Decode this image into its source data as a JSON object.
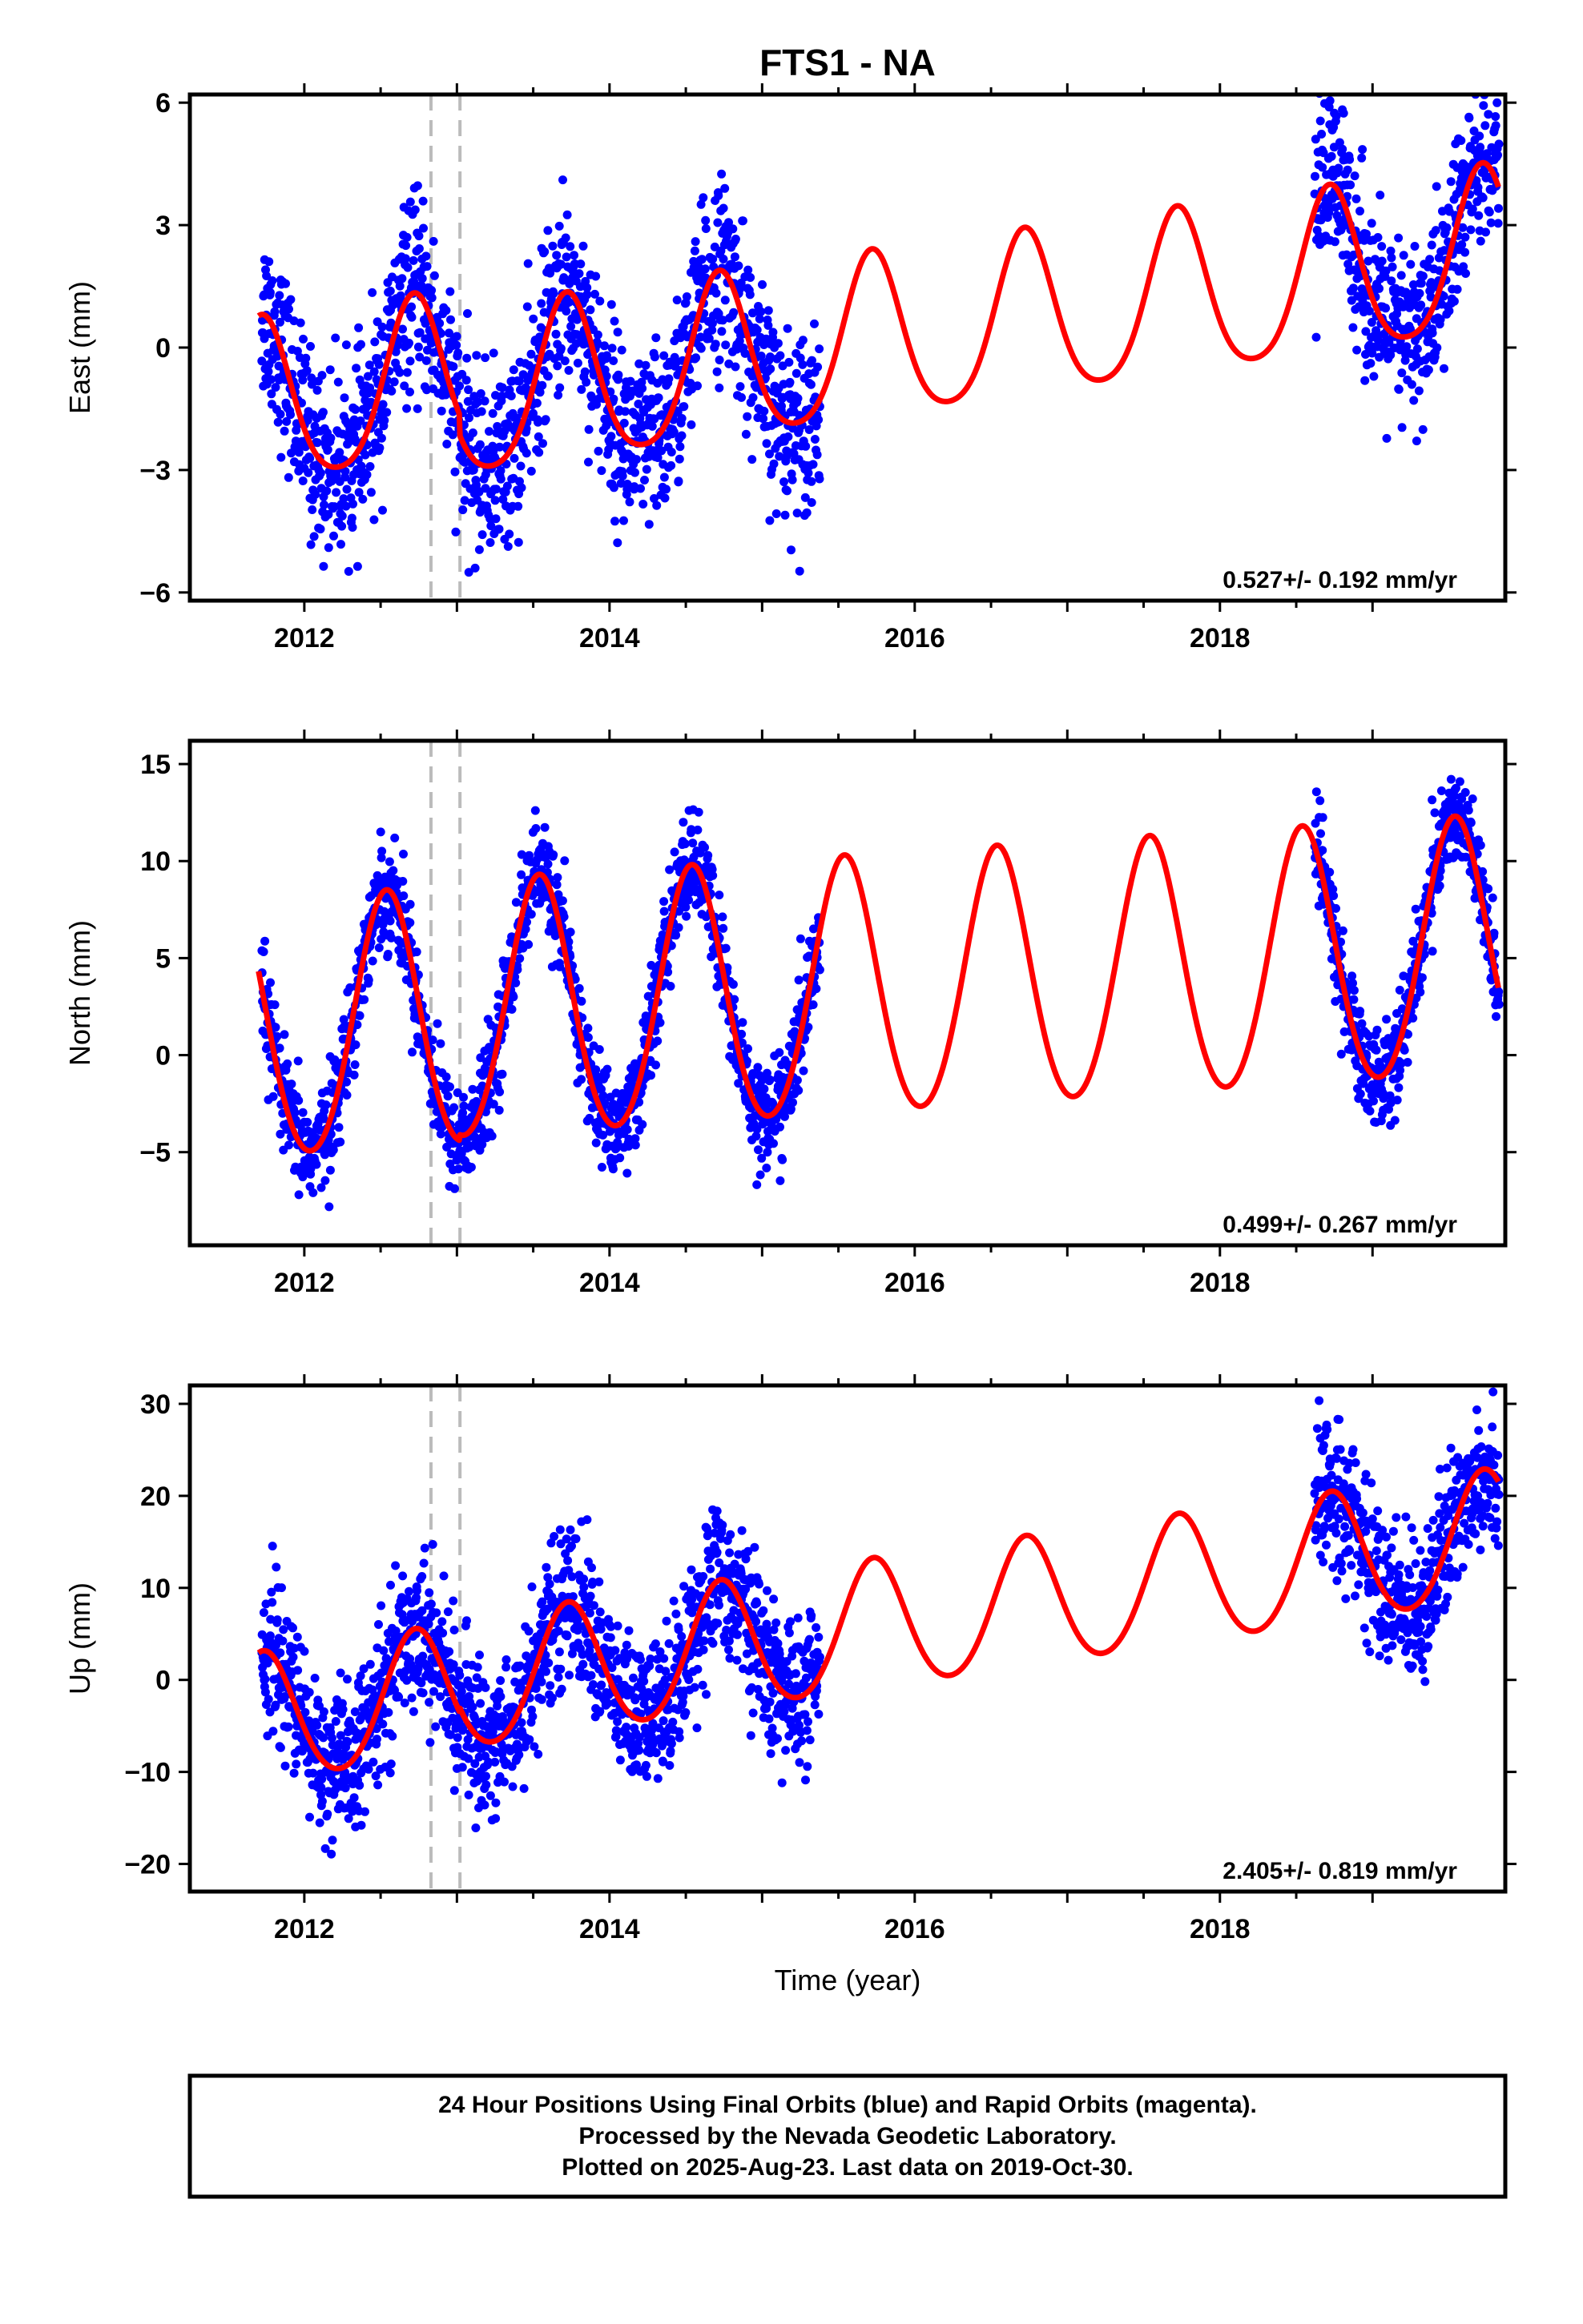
{
  "title": "FTS1 - NA",
  "x_axis_label": "Time (year)",
  "footer_lines": [
    "24 Hour Positions Using Final Orbits (blue) and Rapid Orbits (magenta).",
    "Processed by the Nevada Geodetic Laboratory.",
    "Plotted on 2025-Aug-23. Last data on 2019-Oct-30."
  ],
  "colors": {
    "observations": "#0000ff",
    "model": "#ff0000",
    "offsets": "#bbbbbb",
    "frame": "#000000"
  },
  "chart_data": [
    {
      "type": "scatter",
      "name": "east",
      "ylabel": "East (mm)",
      "rate_label": "0.527+/- 0.192 mm/yr",
      "xlim": [
        2011.25,
        2019.87
      ],
      "ylim": [
        -6.2,
        6.2
      ],
      "xticks": [
        2012,
        2014,
        2016,
        2018
      ],
      "yticks": [
        -6,
        -3,
        0,
        3,
        6
      ],
      "ytick_labels": [
        "−6",
        "−3",
        "0",
        "3",
        "6"
      ],
      "offset_lines": [
        2012.83,
        2013.02
      ],
      "model_params": {
        "trend_mm_per_yr": 0.527,
        "intercept": -1.5,
        "annual_amp": 2.0,
        "annual_peak": 2012.72,
        "semiannual_amp": 0.3,
        "step_at": 2013.02,
        "step": -0.5
      },
      "observation_spans": [
        [
          2011.72,
          2015.38
        ],
        [
          2018.62,
          2019.83
        ]
      ],
      "model_curve": [
        [
          2011.7,
          0.3
        ],
        [
          2012.0,
          0.0
        ],
        [
          2012.3,
          -2.6
        ],
        [
          2012.72,
          1.0
        ],
        [
          2013.0,
          -0.1
        ],
        [
          2013.3,
          -2.6
        ],
        [
          2013.72,
          1.0
        ],
        [
          2014.3,
          -2.0
        ],
        [
          2014.72,
          1.5
        ],
        [
          2015.3,
          -1.6
        ],
        [
          2015.72,
          2.1
        ],
        [
          2016.3,
          -1.0
        ],
        [
          2016.72,
          2.6
        ],
        [
          2017.3,
          -0.5
        ],
        [
          2017.72,
          3.1
        ],
        [
          2018.3,
          0.0
        ],
        [
          2018.72,
          3.6
        ],
        [
          2019.25,
          0.6
        ],
        [
          2019.75,
          4.1
        ]
      ],
      "obs_scatter_sd": 1.1,
      "obs_count": 2000
    },
    {
      "type": "scatter",
      "name": "north",
      "ylabel": "North (mm)",
      "rate_label": "0.499+/- 0.267 mm/yr",
      "xlim": [
        2011.25,
        2019.87
      ],
      "ylim": [
        -9.8,
        16.2
      ],
      "xticks": [
        2012,
        2014,
        2016,
        2018
      ],
      "yticks": [
        -5,
        0,
        5,
        10,
        15
      ],
      "ytick_labels": [
        "−5",
        "0",
        "5",
        "10",
        "15"
      ],
      "offset_lines": [
        2012.83,
        2013.02
      ],
      "model_params": {
        "trend_mm_per_yr": 0.499,
        "intercept": 1.0,
        "annual_amp": 6.6,
        "annual_peak": 2012.54,
        "semiannual_amp": 0.5,
        "step_at": 2013.02,
        "step": 0.3
      },
      "observation_spans": [
        [
          2011.72,
          2015.38
        ],
        [
          2018.62,
          2019.83
        ]
      ],
      "model_curve": [
        [
          2011.7,
          1.8
        ],
        [
          2011.95,
          -5.5
        ],
        [
          2012.54,
          8.2
        ],
        [
          2012.95,
          -4.2
        ],
        [
          2013.54,
          8.6
        ],
        [
          2013.95,
          -4.6
        ],
        [
          2014.54,
          9.0
        ],
        [
          2014.95,
          -4.0
        ],
        [
          2015.54,
          9.6
        ],
        [
          2015.95,
          -3.6
        ],
        [
          2016.54,
          10.1
        ],
        [
          2016.95,
          -3.1
        ],
        [
          2017.54,
          10.6
        ],
        [
          2017.95,
          -2.6
        ],
        [
          2018.54,
          11.1
        ],
        [
          2018.95,
          -2.1
        ],
        [
          2019.54,
          11.6
        ],
        [
          2019.83,
          0.5
        ]
      ],
      "obs_scatter_sd": 1.3,
      "obs_count": 2000
    },
    {
      "type": "scatter",
      "name": "up",
      "ylabel": "Up (mm)",
      "rate_label": "2.405+/- 0.819 mm/yr",
      "xlim": [
        2011.25,
        2019.87
      ],
      "ylim": [
        -23,
        32
      ],
      "xticks": [
        2012,
        2014,
        2016,
        2018
      ],
      "yticks": [
        -20,
        -10,
        0,
        10,
        20,
        30
      ],
      "ytick_labels": [
        "−20",
        "−10",
        "0",
        "10",
        "20",
        "30"
      ],
      "offset_lines": [
        2012.83,
        2013.02
      ],
      "model_params": {
        "trend_mm_per_yr": 2.405,
        "intercept": -4.5,
        "annual_amp": 7.0,
        "annual_peak": 2012.73,
        "semiannual_amp": 0.6,
        "step_at": 2013.02,
        "step": 0.5
      },
      "observation_spans": [
        [
          2011.72,
          2015.38
        ],
        [
          2018.62,
          2019.83
        ]
      ],
      "model_curve": [
        [
          2011.7,
          2.0
        ],
        [
          2012.23,
          -10.0
        ],
        [
          2012.73,
          4.3
        ],
        [
          2013.23,
          -9.5
        ],
        [
          2013.73,
          5.2
        ],
        [
          2014.23,
          -6.8
        ],
        [
          2014.73,
          7.6
        ],
        [
          2015.23,
          -4.5
        ],
        [
          2015.73,
          10.0
        ],
        [
          2016.23,
          -2.0
        ],
        [
          2016.73,
          12.4
        ],
        [
          2017.23,
          0.4
        ],
        [
          2017.73,
          14.8
        ],
        [
          2018.23,
          2.8
        ],
        [
          2018.73,
          17.2
        ],
        [
          2019.23,
          5.3
        ],
        [
          2019.73,
          19.6
        ]
      ],
      "obs_scatter_sd": 4.0,
      "obs_count": 2000
    }
  ]
}
